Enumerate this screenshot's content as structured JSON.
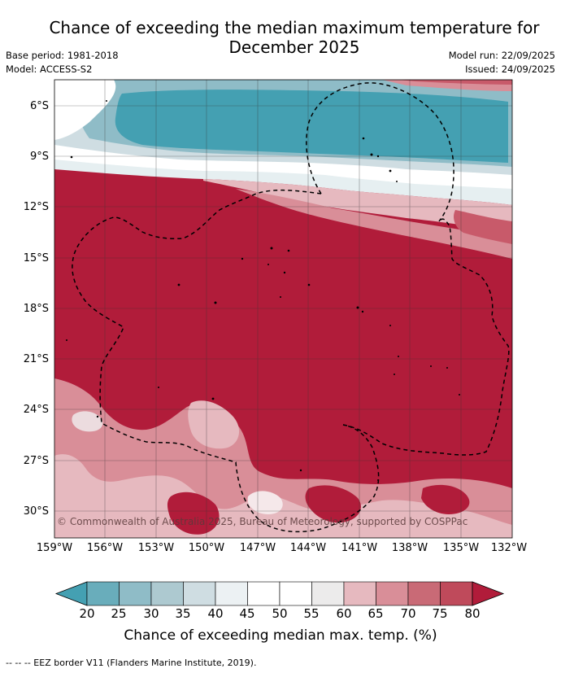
{
  "title": "Chance of exceeding the median maximum temperature for December 2025",
  "meta": {
    "base_period": "Base period: 1981-2018",
    "model": "Model: ACCESS-S2",
    "model_run": "Model run: 22/09/2025",
    "issued": "Issued: 24/09/2025"
  },
  "map": {
    "lat_labels": [
      "6°S",
      "9°S",
      "12°S",
      "15°S",
      "18°S",
      "21°S",
      "24°S",
      "27°S",
      "30°S"
    ],
    "lon_labels": [
      "159°W",
      "156°W",
      "153°W",
      "150°W",
      "147°W",
      "144°W",
      "141°W",
      "138°W",
      "135°W",
      "132°W"
    ],
    "copyright": "© Commonwealth of Australia 2025, Bureau of Meteorology, supported by COSPPac",
    "colors": {
      "very_high": "#b11c3a",
      "high": "#c85a6a",
      "mid_high": "#d98e98",
      "light_high": "#e6b9bf",
      "neutral": "#ffffff",
      "light_low": "#cfdde2",
      "low": "#96c0cb",
      "very_low": "#44a0b2"
    }
  },
  "colorbar": {
    "ticks": [
      "20",
      "25",
      "30",
      "35",
      "40",
      "45",
      "50",
      "55",
      "60",
      "65",
      "70",
      "75",
      "80"
    ],
    "colors": [
      "#44a0b2",
      "#69adbb",
      "#8fbcc7",
      "#adc9d0",
      "#cfdde2",
      "#ecf1f3",
      "#ffffff",
      "#ffffff",
      "#ecebeb",
      "#e6b9bf",
      "#d98e98",
      "#c96a76",
      "#bf4a5b",
      "#b11c3a"
    ],
    "label": "Chance of exceeding median max. temp. (%)"
  },
  "footer": "-- -- -- EEZ border V11 (Flanders Marine Institute, 2019)."
}
